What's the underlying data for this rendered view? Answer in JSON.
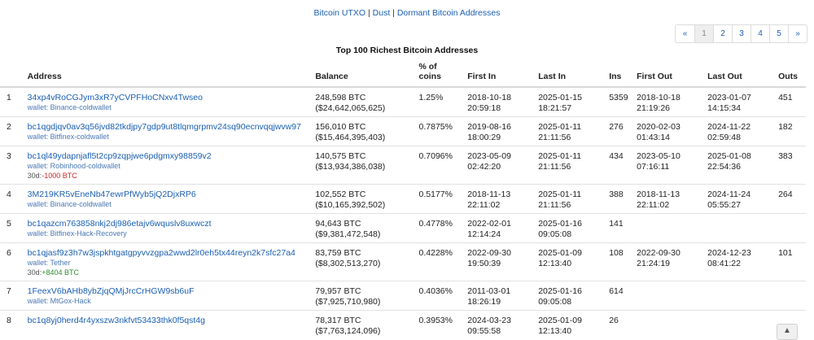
{
  "nav": {
    "utxo": "Bitcoin UTXO",
    "sep1": " | ",
    "dust": "Dust",
    "sep2": " | ",
    "dormant": "Dormant Bitcoin Addresses"
  },
  "pagination": {
    "prev": "«",
    "pages": [
      "1",
      "2",
      "3",
      "4",
      "5"
    ],
    "next": "»",
    "active": "1"
  },
  "title": "Top 100 Richest Bitcoin Addresses",
  "columns": {
    "rank": "",
    "address": "Address",
    "balance": "Balance",
    "pct_line1": "% of",
    "pct_line2": "coins",
    "first_in": "First In",
    "last_in": "Last In",
    "ins": "Ins",
    "first_out": "First Out",
    "last_out": "Last Out",
    "outs": "Outs"
  },
  "rows": [
    {
      "rank": "1",
      "address": "34xp4vRoCGJym3xR7yCVPFHoCNxv4Twseo",
      "wallet": "wallet: Binance-coldwallet",
      "note_prefix": "",
      "note_value": "",
      "balance_btc": "248,598 BTC",
      "balance_usd": "($24,642,065,625)",
      "pct": "1.25%",
      "first_in_date": "2018-10-18",
      "first_in_time": "20:59:18",
      "last_in_date": "2025-01-15",
      "last_in_time": "18:21:57",
      "ins": "5359",
      "first_out_date": "2018-10-18",
      "first_out_time": "21:19:26",
      "last_out_date": "2023-01-07",
      "last_out_time": "14:15:34",
      "outs": "451"
    },
    {
      "rank": "2",
      "address": "bc1qgdjqv0av3q56jvd82tkdjpy7gdp9ut8tlqmgrpmv24sq90ecnvqqjwvw97",
      "wallet": "wallet: Bitfinex-coldwallet",
      "note_prefix": "",
      "note_value": "",
      "balance_btc": "156,010 BTC",
      "balance_usd": "($15,464,395,403)",
      "pct": "0.7875%",
      "first_in_date": "2019-08-16",
      "first_in_time": "18:00:29",
      "last_in_date": "2025-01-11",
      "last_in_time": "21:11:56",
      "ins": "276",
      "first_out_date": "2020-02-03",
      "first_out_time": "01:43:14",
      "last_out_date": "2024-11-22",
      "last_out_time": "02:59:48",
      "outs": "182"
    },
    {
      "rank": "3",
      "address": "bc1ql49ydapnjafl5t2cp9zqpjwe6pdgmxy98859v2",
      "wallet": "wallet: Robinhood-coldwallet",
      "note_prefix": "30d:",
      "note_value": "-1000 BTC",
      "note_type": "neg",
      "balance_btc": "140,575 BTC",
      "balance_usd": "($13,934,386,038)",
      "pct": "0.7096%",
      "first_in_date": "2023-05-09",
      "first_in_time": "02:42:20",
      "last_in_date": "2025-01-11",
      "last_in_time": "21:11:56",
      "ins": "434",
      "first_out_date": "2023-05-10",
      "first_out_time": "07:16:11",
      "last_out_date": "2025-01-08",
      "last_out_time": "22:54:36",
      "outs": "383"
    },
    {
      "rank": "4",
      "address": "3M219KR5vEneNb47ewrPfWyb5jQ2DjxRP6",
      "wallet": "wallet: Binance-coldwallet",
      "note_prefix": "",
      "note_value": "",
      "balance_btc": "102,552 BTC",
      "balance_usd": "($10,165,392,502)",
      "pct": "0.5177%",
      "first_in_date": "2018-11-13",
      "first_in_time": "22:11:02",
      "last_in_date": "2025-01-11",
      "last_in_time": "21:11:56",
      "ins": "388",
      "first_out_date": "2018-11-13",
      "first_out_time": "22:11:02",
      "last_out_date": "2024-11-24",
      "last_out_time": "05:55:27",
      "outs": "264"
    },
    {
      "rank": "5",
      "address": "bc1qazcm763858nkj2dj986etajv6wquslv8uxwczt",
      "wallet": "wallet: Bitfinex-Hack-Recovery",
      "note_prefix": "",
      "note_value": "",
      "balance_btc": "94,643 BTC",
      "balance_usd": "($9,381,472,548)",
      "pct": "0.4778%",
      "first_in_date": "2022-02-01",
      "first_in_time": "12:14:24",
      "last_in_date": "2025-01-16",
      "last_in_time": "09:05:08",
      "ins": "141",
      "first_out_date": "",
      "first_out_time": "",
      "last_out_date": "",
      "last_out_time": "",
      "outs": ""
    },
    {
      "rank": "6",
      "address": "bc1qjasf9z3h7w3jspkhtgatgpyvvzgpa2wwd2lr0eh5tx44reyn2k7sfc27a4",
      "wallet": "wallet: Tether",
      "note_prefix": "30d:",
      "note_value": "+8404 BTC",
      "note_type": "pos",
      "balance_btc": "83,759 BTC",
      "balance_usd": "($8,302,513,270)",
      "pct": "0.4228%",
      "first_in_date": "2022-09-30",
      "first_in_time": "19:50:39",
      "last_in_date": "2025-01-09",
      "last_in_time": "12:13:40",
      "ins": "108",
      "first_out_date": "2022-09-30",
      "first_out_time": "21:24:19",
      "last_out_date": "2024-12-23",
      "last_out_time": "08:41:22",
      "outs": "101"
    },
    {
      "rank": "7",
      "address": "1FeexV6bAHb8ybZjqQMjJrcCrHGW9sb6uF",
      "wallet": "wallet: MtGox-Hack",
      "note_prefix": "",
      "note_value": "",
      "balance_btc": "79,957 BTC",
      "balance_usd": "($7,925,710,980)",
      "pct": "0.4036%",
      "first_in_date": "2011-03-01",
      "first_in_time": "18:26:19",
      "last_in_date": "2025-01-16",
      "last_in_time": "09:05:08",
      "ins": "614",
      "first_out_date": "",
      "first_out_time": "",
      "last_out_date": "",
      "last_out_time": "",
      "outs": ""
    },
    {
      "rank": "8",
      "address": "bc1q8yj0herd4r4yxszw3nkfvt53433thk0f5qst4g",
      "wallet": "",
      "note_prefix": "",
      "note_value": "",
      "balance_btc": "78,317 BTC",
      "balance_usd": "($7,763,124,096)",
      "pct": "0.3953%",
      "first_in_date": "2024-03-23",
      "first_in_time": "09:55:58",
      "last_in_date": "2025-01-09",
      "last_in_time": "12:13:40",
      "ins": "26",
      "first_out_date": "",
      "first_out_time": "",
      "last_out_date": "",
      "last_out_time": "",
      "outs": ""
    }
  ],
  "scroll_top_icon": "chevron-up-icon",
  "scroll_top_glyph": "▲",
  "colors": {
    "link": "#1a5fb4",
    "negative": "#d02525",
    "positive": "#2e8b2e"
  }
}
